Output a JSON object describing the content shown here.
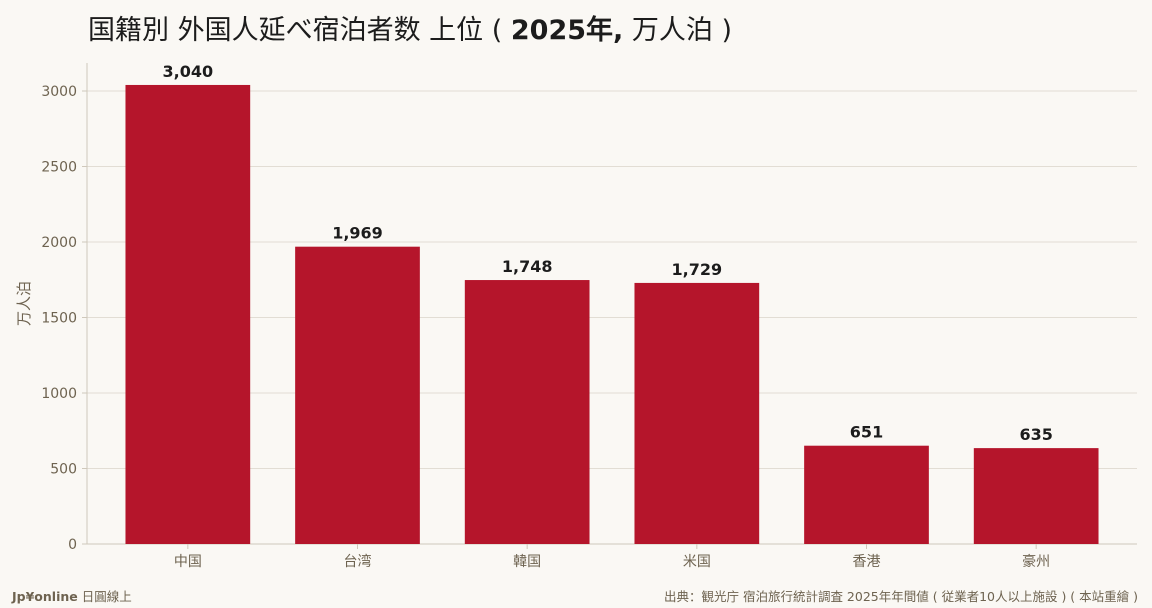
{
  "title_prefix": "国籍別 外国人延べ宿泊者数 上位 ( ",
  "title_year": "2025年,",
  "title_suffix": " 万人泊 )",
  "footer": {
    "brand": "Jp¥online",
    "brand_sub": "日圓線上",
    "source": "出典：観光庁 宿泊旅行統計調査 2025年年間値 ( 従業者10人以上施設 ) ( 本站重繪 )"
  },
  "colors": {
    "bar": "#b5152b",
    "background": "#faf8f4",
    "grid": "#e2ddd4",
    "axis": "#cfc8bb"
  },
  "chart_data": {
    "type": "bar",
    "categories": [
      "中国",
      "台湾",
      "韓国",
      "米国",
      "香港",
      "豪州"
    ],
    "values": [
      3040,
      1969,
      1748,
      1729,
      651,
      635
    ],
    "data_labels": [
      "3,040",
      "1,969",
      "1,748",
      "1,729",
      "651",
      "635"
    ],
    "ylabel": "万人泊",
    "xlabel": "",
    "ylim": [
      0,
      3200
    ],
    "yticks": [
      0,
      500,
      1000,
      1500,
      2000,
      2500,
      3000
    ],
    "grid": true
  }
}
